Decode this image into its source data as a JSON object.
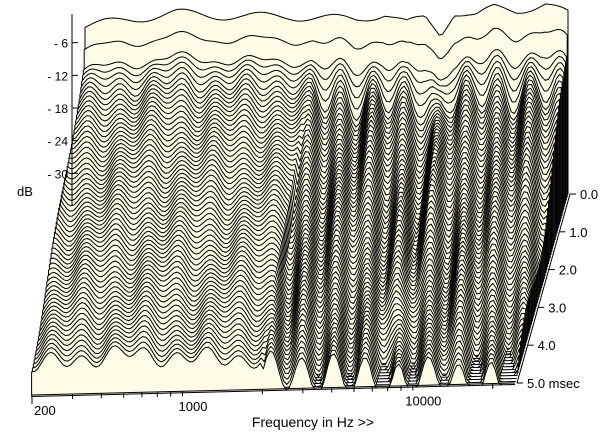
{
  "chart_data": {
    "type": "area",
    "subtype": "waterfall-3d",
    "title": "",
    "xlabel": "Frequency in Hz >>",
    "ylabel": "dB",
    "zlabel_unit": "msec",
    "x_scale": "log",
    "xlim": [
      200,
      25000
    ],
    "x_ticks": [
      200,
      1000,
      10000
    ],
    "x_tick_labels": [
      "200",
      "1000",
      "10000"
    ],
    "ylim": [
      -36,
      0
    ],
    "y_ticks": [
      -6,
      -12,
      -18,
      -24,
      -30
    ],
    "y_tick_labels": [
      "- 6",
      "- 12",
      "- 18",
      "- 24",
      "- 30"
    ],
    "z_ticks": [
      0.0,
      1.0,
      2.0,
      3.0,
      4.0,
      5.0
    ],
    "z_tick_labels": [
      "0.0",
      "1.0",
      "2.0",
      "3.0",
      "4.0",
      "5.0 msec"
    ],
    "slice_count": 64,
    "slice_step_ms": 0.08,
    "grid": false,
    "legend": "none",
    "colors": {
      "fill": "#fffbe6",
      "line": "#000000",
      "axis": "#000000"
    },
    "response_points": {
      "freq_hz": [
        200,
        300,
        500,
        700,
        1000,
        1500,
        2000,
        3000,
        4000,
        5000,
        6000,
        7000,
        8000,
        10000,
        12000,
        15000,
        20000,
        25000
      ],
      "level_db": [
        -3,
        -2,
        -1,
        -1.5,
        -2,
        -2,
        -2.5,
        -3,
        -2,
        -4,
        -3,
        -6,
        -2,
        -3,
        -1.5,
        -2,
        -1,
        -3
      ]
    }
  }
}
